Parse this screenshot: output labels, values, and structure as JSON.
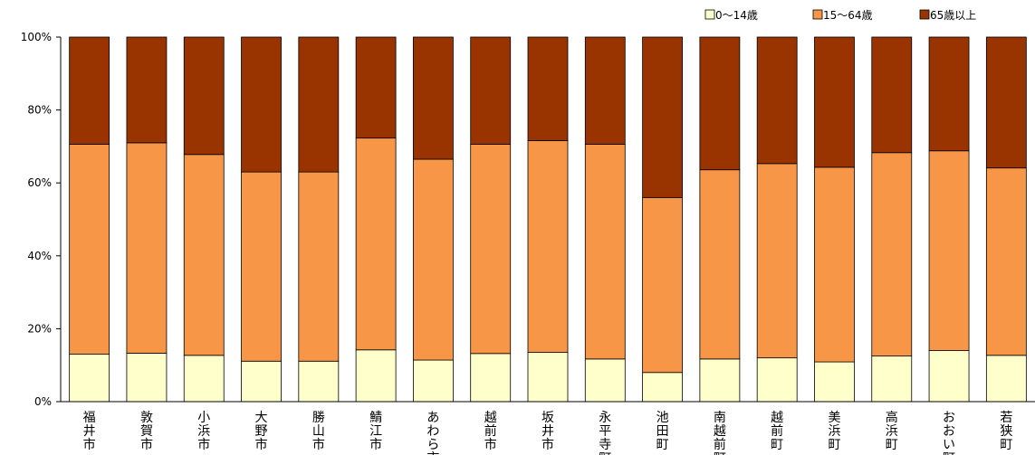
{
  "chart_data": {
    "type": "bar",
    "stacked": true,
    "percent_stacked": true,
    "title": "",
    "xlabel": "",
    "ylabel": "",
    "ylim": [
      0,
      100
    ],
    "y_ticks": [
      "0%",
      "20%",
      "40%",
      "60%",
      "80%",
      "100%"
    ],
    "grid": false,
    "legend_position": "top-right",
    "categories": [
      "福井市",
      "敦賀市",
      "小浜市",
      "大野市",
      "勝山市",
      "鯖江市",
      "あわら市",
      "越前市",
      "坂井市",
      "永平寺町",
      "池田町",
      "南越前町",
      "越前町",
      "美浜町",
      "高浜町",
      "おおい町",
      "若狭町"
    ],
    "series": [
      {
        "name": "0～14歳",
        "color": "#ffffcc",
        "values": [
          13.0,
          13.3,
          12.7,
          11.1,
          11.1,
          14.2,
          11.4,
          13.2,
          13.5,
          11.7,
          8.0,
          11.7,
          12.0,
          10.9,
          12.5,
          14.0,
          12.7
        ]
      },
      {
        "name": "15～64歳",
        "color": "#f79646",
        "values": [
          57.6,
          57.7,
          55.1,
          51.9,
          51.9,
          58.1,
          55.1,
          57.4,
          58.1,
          58.9,
          48.0,
          51.9,
          53.3,
          53.4,
          55.8,
          54.8,
          51.4
        ]
      },
      {
        "name": "65歳以上",
        "color": "#993300",
        "values": [
          29.4,
          29.0,
          32.2,
          37.0,
          37.0,
          27.7,
          33.5,
          29.4,
          28.4,
          29.4,
          44.0,
          36.4,
          34.7,
          35.7,
          31.7,
          31.2,
          35.9
        ]
      }
    ]
  }
}
